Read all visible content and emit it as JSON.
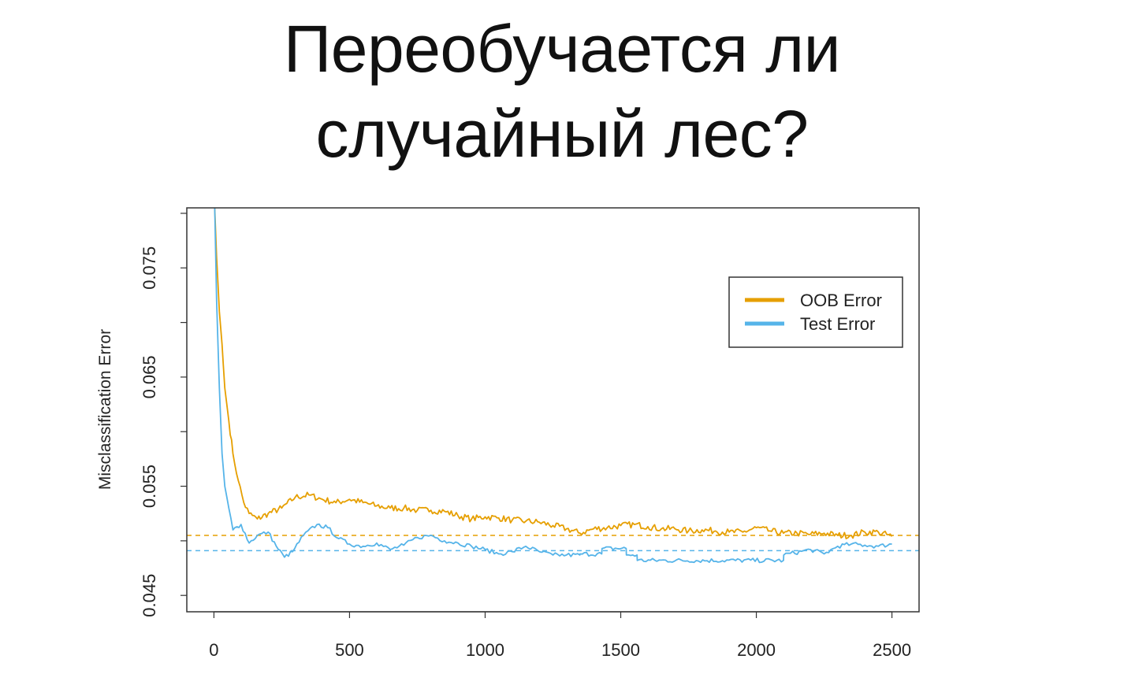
{
  "slide": {
    "title_line1": "Переобучается ли",
    "title_line2": "случайный лес?"
  },
  "chart_data": {
    "type": "line",
    "title": "",
    "xlabel": "",
    "ylabel": "Misclassification Error",
    "xlim": [
      -100,
      2600
    ],
    "ylim": [
      0.0435,
      0.0805
    ],
    "x_ticks": [
      "0",
      "500",
      "1000",
      "1500",
      "2000",
      "2500"
    ],
    "y_ticks": [
      "0.045",
      "0.055",
      "0.065",
      "0.075"
    ],
    "legend_position": "top-right",
    "grid": false,
    "series": [
      {
        "name": "OOB Error",
        "color": "#E69F00",
        "points": [
          [
            3,
            0.0805
          ],
          [
            10,
            0.076
          ],
          [
            20,
            0.071
          ],
          [
            30,
            0.068
          ],
          [
            40,
            0.064
          ],
          [
            55,
            0.061
          ],
          [
            70,
            0.058
          ],
          [
            90,
            0.0555
          ],
          [
            110,
            0.0535
          ],
          [
            130,
            0.0525
          ],
          [
            160,
            0.052
          ],
          [
            200,
            0.0525
          ],
          [
            250,
            0.053
          ],
          [
            300,
            0.054
          ],
          [
            350,
            0.0542
          ],
          [
            400,
            0.0538
          ],
          [
            450,
            0.0535
          ],
          [
            500,
            0.0538
          ],
          [
            550,
            0.0535
          ],
          [
            600,
            0.0532
          ],
          [
            650,
            0.053
          ],
          [
            700,
            0.053
          ],
          [
            750,
            0.0528
          ],
          [
            800,
            0.0528
          ],
          [
            850,
            0.0527
          ],
          [
            900,
            0.0523
          ],
          [
            950,
            0.052
          ],
          [
            1000,
            0.0522
          ],
          [
            1050,
            0.0521
          ],
          [
            1100,
            0.0519
          ],
          [
            1150,
            0.0518
          ],
          [
            1200,
            0.0517
          ],
          [
            1250,
            0.0514
          ],
          [
            1300,
            0.0511
          ],
          [
            1350,
            0.0507
          ],
          [
            1400,
            0.0511
          ],
          [
            1450,
            0.0512
          ],
          [
            1500,
            0.0514
          ],
          [
            1550,
            0.0515
          ],
          [
            1600,
            0.0513
          ],
          [
            1650,
            0.0511
          ],
          [
            1700,
            0.0511
          ],
          [
            1750,
            0.0509
          ],
          [
            1800,
            0.051
          ],
          [
            1850,
            0.0509
          ],
          [
            1900,
            0.0508
          ],
          [
            1950,
            0.0508
          ],
          [
            2000,
            0.0512
          ],
          [
            2050,
            0.0509
          ],
          [
            2100,
            0.0507
          ],
          [
            2150,
            0.0507
          ],
          [
            2200,
            0.0506
          ],
          [
            2250,
            0.0507
          ],
          [
            2300,
            0.0505
          ],
          [
            2350,
            0.0505
          ],
          [
            2400,
            0.0508
          ],
          [
            2450,
            0.0508
          ],
          [
            2500,
            0.0504
          ]
        ]
      },
      {
        "name": "Test Error",
        "color": "#56B4E9",
        "points": [
          [
            3,
            0.0805
          ],
          [
            10,
            0.072
          ],
          [
            20,
            0.064
          ],
          [
            30,
            0.058
          ],
          [
            40,
            0.055
          ],
          [
            55,
            0.053
          ],
          [
            70,
            0.051
          ],
          [
            100,
            0.0515
          ],
          [
            130,
            0.0498
          ],
          [
            160,
            0.0505
          ],
          [
            200,
            0.0508
          ],
          [
            230,
            0.0495
          ],
          [
            260,
            0.0485
          ],
          [
            290,
            0.049
          ],
          [
            330,
            0.0505
          ],
          [
            380,
            0.0515
          ],
          [
            420,
            0.0512
          ],
          [
            460,
            0.0502
          ],
          [
            500,
            0.0497
          ],
          [
            550,
            0.0495
          ],
          [
            600,
            0.0498
          ],
          [
            650,
            0.0492
          ],
          [
            700,
            0.0496
          ],
          [
            750,
            0.0503
          ],
          [
            800,
            0.0505
          ],
          [
            850,
            0.05
          ],
          [
            900,
            0.0498
          ],
          [
            950,
            0.0495
          ],
          [
            1000,
            0.0492
          ],
          [
            1050,
            0.0488
          ],
          [
            1100,
            0.049
          ],
          [
            1150,
            0.0495
          ],
          [
            1200,
            0.049
          ],
          [
            1250,
            0.0487
          ],
          [
            1300,
            0.0487
          ],
          [
            1349,
            0.0487
          ],
          [
            1350,
            0.0488
          ],
          [
            1430,
            0.0488
          ],
          [
            1431,
            0.0493
          ],
          [
            1520,
            0.0493
          ],
          [
            1521,
            0.0487
          ],
          [
            1560,
            0.0487
          ],
          [
            1561,
            0.0482
          ],
          [
            2100,
            0.0482
          ],
          [
            2101,
            0.0487
          ],
          [
            2200,
            0.0492
          ],
          [
            2250,
            0.0488
          ],
          [
            2300,
            0.0495
          ],
          [
            2350,
            0.0497
          ],
          [
            2400,
            0.0496
          ],
          [
            2450,
            0.0495
          ],
          [
            2500,
            0.0497
          ]
        ]
      }
    ],
    "reference_lines": [
      {
        "series": "OOB Error",
        "y": 0.0505,
        "style": "dashed",
        "color": "#E69F00"
      },
      {
        "series": "Test Error",
        "y": 0.0491,
        "style": "dashed",
        "color": "#56B4E9"
      }
    ]
  }
}
